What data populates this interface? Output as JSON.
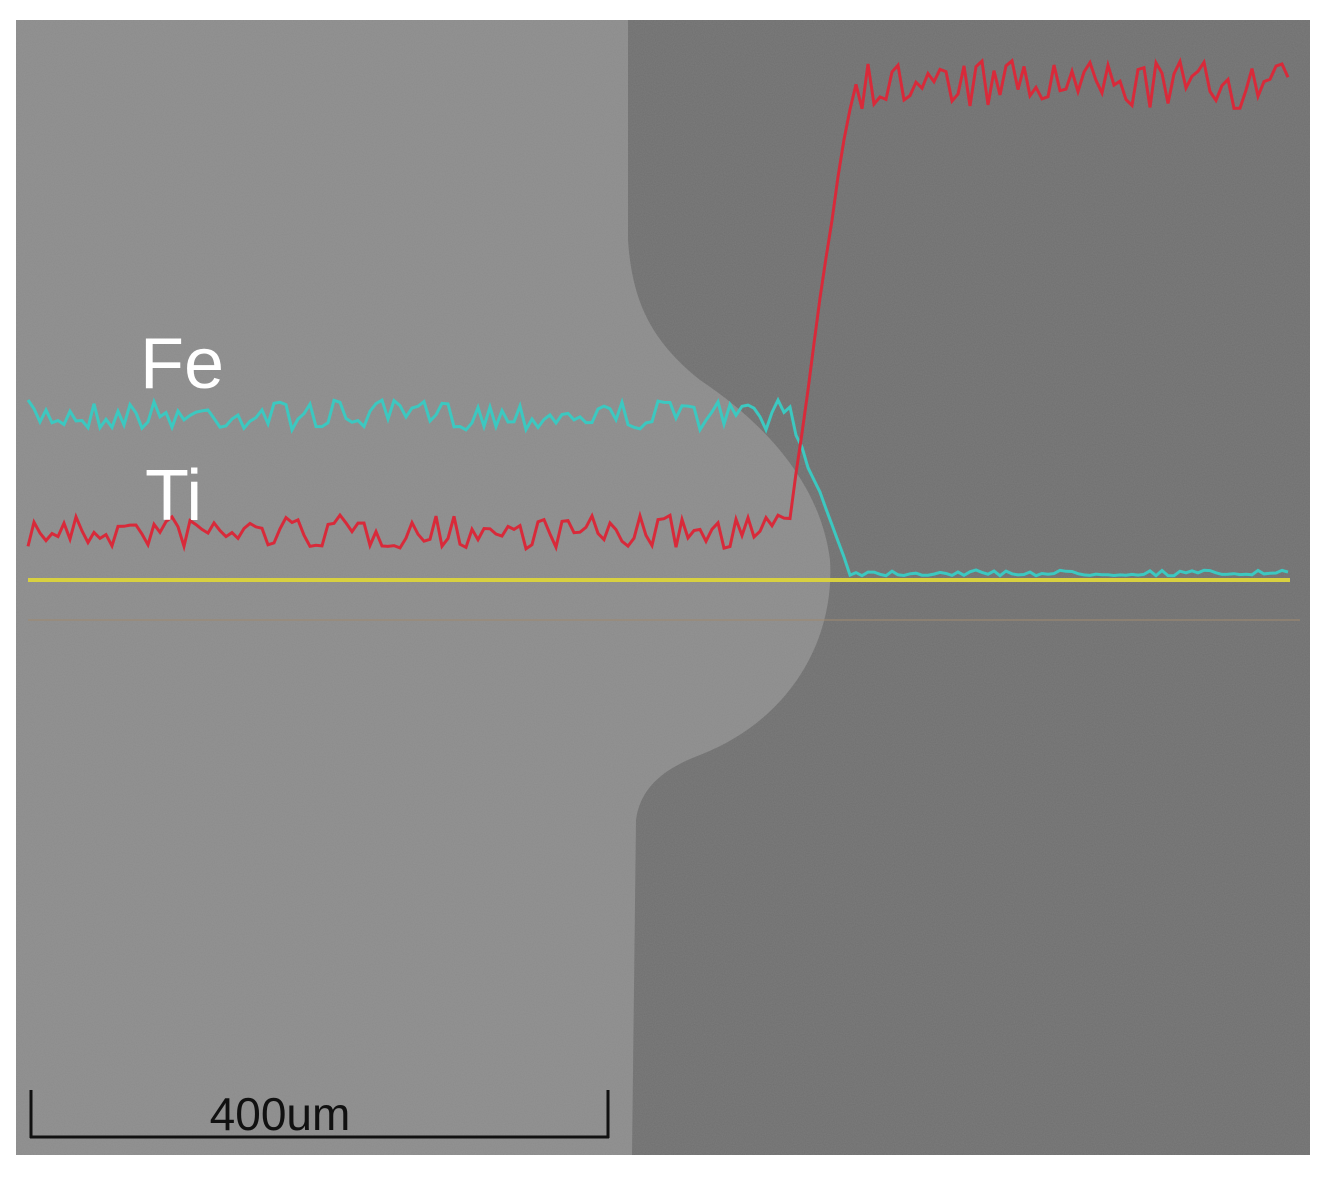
{
  "labels": {
    "fe": "Fe",
    "ti": "Ti"
  },
  "scale_bar": {
    "label": "400um"
  }
}
